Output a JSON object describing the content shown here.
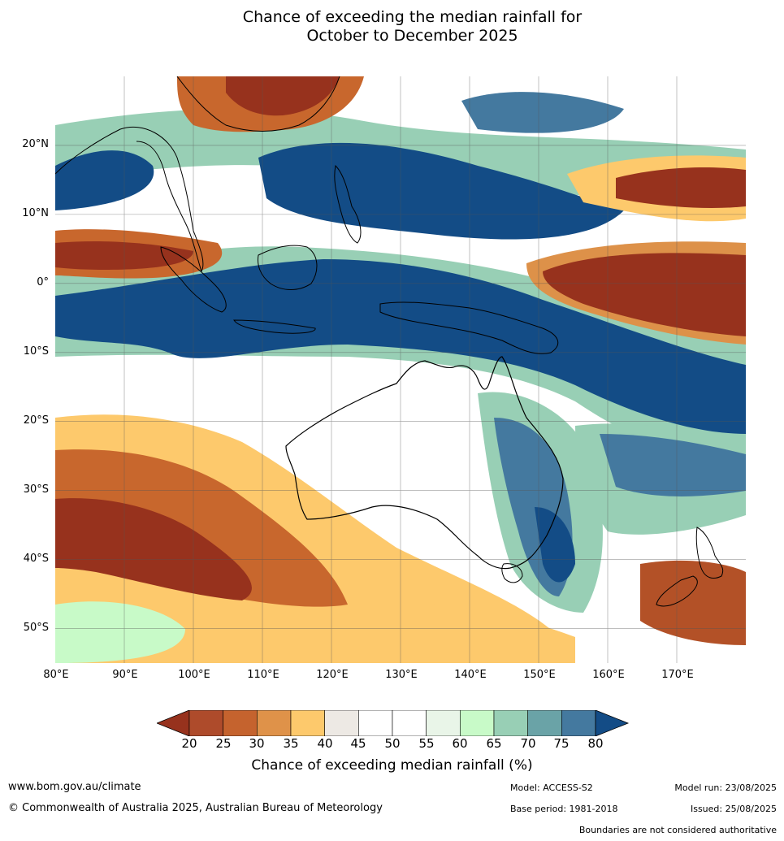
{
  "title_line1": "Chance of exceeding the median rainfall for",
  "title_line2": "October to December 2025",
  "map": {
    "lat_labels": [
      "20°N",
      "10°N",
      "0°",
      "10°S",
      "20°S",
      "30°S",
      "40°S",
      "50°S"
    ],
    "lon_labels": [
      "80°E",
      "90°E",
      "100°E",
      "110°E",
      "120°E",
      "130°E",
      "140°E",
      "150°E",
      "160°E",
      "170°E"
    ],
    "lon_range": [
      80,
      180
    ],
    "lat_range": [
      -55,
      30
    ],
    "colors": {
      "20": "#97321d",
      "25": "#b35127",
      "30": "#c8672d",
      "35": "#dd9149",
      "40": "#fdc96c",
      "45": "#ede9e4",
      "50": "#ffffff",
      "55": "#ffffff",
      "60": "#e9f5e8",
      "65": "#c8fac8",
      "70": "#98cfb5",
      "75": "#6aa3a7",
      "80": "#44799f",
      "above80": "#134c86"
    }
  },
  "colorbar": {
    "ticks": [
      "20",
      "25",
      "30",
      "35",
      "40",
      "45",
      "50",
      "55",
      "60",
      "65",
      "70",
      "75",
      "80"
    ],
    "colors": [
      "#ae4b2b",
      "#c5632e",
      "#df9249",
      "#fdc96c",
      "#ede9e4",
      "#ffffff",
      "#ffffff",
      "#e9f5e8",
      "#c8fac8",
      "#98cfb5",
      "#6aa3a7",
      "#44799f"
    ],
    "below_color": "#97321d",
    "above_color": "#134c86",
    "title": "Chance of exceeding median rainfall (%)"
  },
  "footer": {
    "website": "www.bom.gov.au/climate",
    "copyright": "© Commonwealth of Australia 2025, Australian Bureau of Meteorology",
    "model": "Model: ACCESS-S2",
    "base_period": "Base period: 1981-2018",
    "model_run": "Model run: 23/08/2025",
    "issued": "Issued: 25/08/2025",
    "disclaimer": "Boundaries are not considered authoritative"
  }
}
